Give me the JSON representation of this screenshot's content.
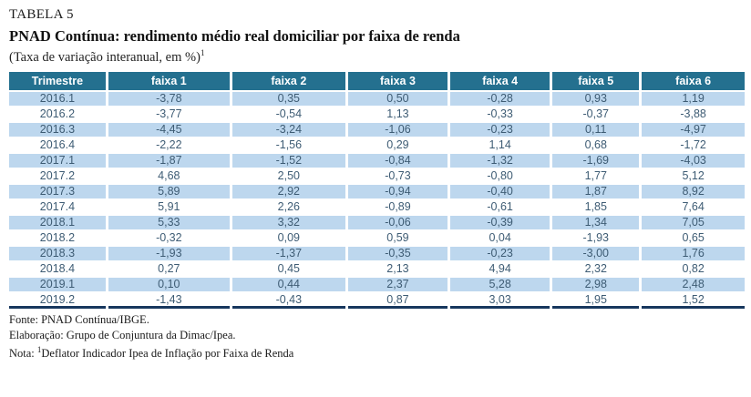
{
  "page": {
    "label": "TABELA 5",
    "title": "PNAD Contínua: rendimento médio real domiciliar por faixa de renda",
    "subtitle": "(Taxa de variação interanual, em %)",
    "subtitle_note_ref": "1"
  },
  "table": {
    "columns": [
      "Trimestre",
      "faixa 1",
      "faixa 2",
      "faixa 3",
      "faixa 4",
      "faixa 5",
      "faixa 6"
    ],
    "rows": [
      {
        "trimestre": "2016.1",
        "values": [
          "-3,78",
          "0,35",
          "0,50",
          "-0,28",
          "0,93",
          "1,19"
        ]
      },
      {
        "trimestre": "2016.2",
        "values": [
          "-3,77",
          "-0,54",
          "1,13",
          "-0,33",
          "-0,37",
          "-3,88"
        ]
      },
      {
        "trimestre": "2016.3",
        "values": [
          "-4,45",
          "-3,24",
          "-1,06",
          "-0,23",
          "0,11",
          "-4,97"
        ]
      },
      {
        "trimestre": "2016.4",
        "values": [
          "-2,22",
          "-1,56",
          "0,29",
          "1,14",
          "0,68",
          "-1,72"
        ]
      },
      {
        "trimestre": "2017.1",
        "values": [
          "-1,87",
          "-1,52",
          "-0,84",
          "-1,32",
          "-1,69",
          "-4,03"
        ]
      },
      {
        "trimestre": "2017.2",
        "values": [
          "4,68",
          "2,50",
          "-0,73",
          "-0,80",
          "1,77",
          "5,12"
        ]
      },
      {
        "trimestre": "2017.3",
        "values": [
          "5,89",
          "2,92",
          "-0,94",
          "-0,40",
          "1,87",
          "8,92"
        ]
      },
      {
        "trimestre": "2017.4",
        "values": [
          "5,91",
          "2,26",
          "-0,89",
          "-0,61",
          "1,85",
          "7,64"
        ]
      },
      {
        "trimestre": "2018.1",
        "values": [
          "5,33",
          "3,32",
          "-0,06",
          "-0,39",
          "1,34",
          "7,05"
        ]
      },
      {
        "trimestre": "2018.2",
        "values": [
          "-0,32",
          "0,09",
          "0,59",
          "0,04",
          "-1,93",
          "0,65"
        ]
      },
      {
        "trimestre": "2018.3",
        "values": [
          "-1,93",
          "-1,37",
          "-0,35",
          "-0,23",
          "-3,00",
          "1,76"
        ]
      },
      {
        "trimestre": "2018.4",
        "values": [
          "0,27",
          "0,45",
          "2,13",
          "4,94",
          "2,32",
          "0,82"
        ]
      },
      {
        "trimestre": "2019.1",
        "values": [
          "0,10",
          "0,44",
          "2,37",
          "5,28",
          "2,98",
          "2,48"
        ]
      },
      {
        "trimestre": "2019.2",
        "values": [
          "-1,43",
          "-0,43",
          "0,87",
          "3,03",
          "1,95",
          "1,52"
        ]
      }
    ]
  },
  "footer": {
    "fonte": "Fonte: PNAD Contínua/IBGE.",
    "elaboracao": "Elaboração: Grupo de Conjuntura da Dimac/Ipea.",
    "nota_label": "Nota: ",
    "nota_ref": "1",
    "nota_text": "Deflator Indicador Ipea de Inflação por Faixa de Renda"
  },
  "colors": {
    "header_bg": "#24708F",
    "header_text": "#FFFFFF",
    "row_alt_bg": "#BDD7EE",
    "row_bg": "#FFFFFF",
    "cell_text": "#3E5C74",
    "bottom_rule": "#17375E"
  }
}
